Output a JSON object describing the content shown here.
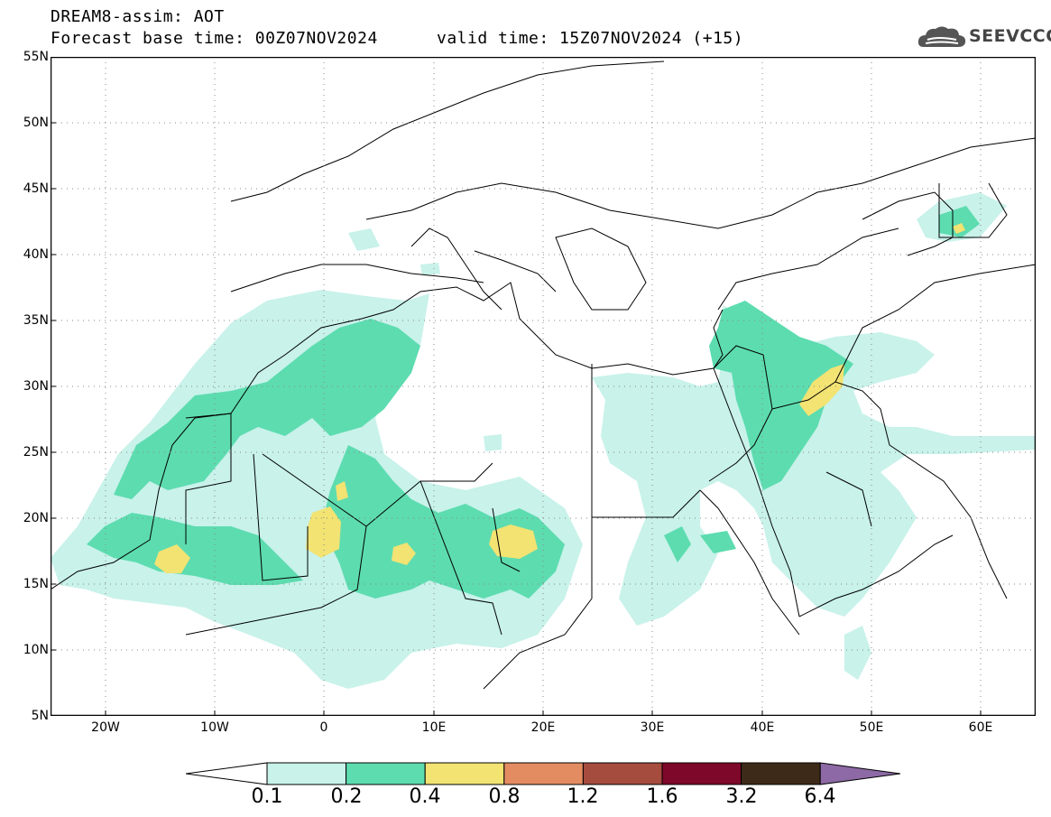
{
  "header": {
    "title": "DREAM8-assim: AOT",
    "base_time": "Forecast base time: 00Z07NOV2024",
    "valid_time": "valid time: 15Z07NOV2024 (+15)"
  },
  "logo": {
    "text": "SEEVCCC",
    "icon": "cloud-icon"
  },
  "map": {
    "lat_labels": [
      "55N",
      "50N",
      "45N",
      "40N",
      "35N",
      "30N",
      "25N",
      "20N",
      "15N",
      "10N",
      "5N"
    ],
    "lon_labels": [
      "20W",
      "10W",
      "0",
      "10E",
      "20E",
      "30E",
      "40E",
      "50E",
      "60E"
    ],
    "extent": {
      "lon": [
        -25,
        65
      ],
      "lat": [
        5,
        55
      ]
    },
    "colors": {
      "low": "#c8f2ea",
      "mid": "#5ddcb0",
      "high": "#f2e373",
      "coast": "#000000"
    }
  },
  "colorbar": {
    "labels": [
      "0.1",
      "0.2",
      "0.4",
      "0.8",
      "1.2",
      "1.6",
      "3.2",
      "6.4"
    ],
    "colors": [
      "#ffffff",
      "#c8f2ea",
      "#5ddcb0",
      "#f2e373",
      "#e38c62",
      "#a54c3e",
      "#7e0829",
      "#3e2a18",
      "#8d6aa5"
    ]
  }
}
